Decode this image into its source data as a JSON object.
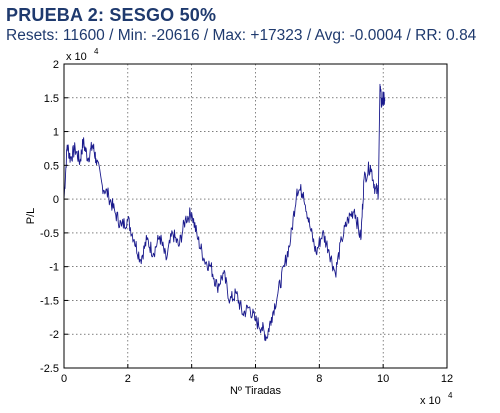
{
  "header": {
    "title": "PRUEBA 2: SESGO 50%",
    "subtitle": "Resets: 11600 / Min: -20616 / Max: +17323 / Avg: -0.0004 / RR: 0.84"
  },
  "chart_data": {
    "type": "line",
    "title": "",
    "xlabel": "Nº Tiradas",
    "ylabel": "P/L",
    "x_exponent_label": "x 10",
    "x_exponent": "4",
    "y_exponent_label": "x 10",
    "y_exponent": "4",
    "xlim": [
      0,
      12
    ],
    "ylim": [
      -2.5,
      2
    ],
    "x_ticks": [
      0,
      2,
      4,
      6,
      8,
      10,
      12
    ],
    "y_ticks": [
      -2.5,
      -2,
      -1.5,
      -1,
      -0.5,
      0,
      0.5,
      1,
      1.5,
      2
    ],
    "x_tick_labels": [
      "0",
      "2",
      "4",
      "6",
      "8",
      "10",
      "12"
    ],
    "y_tick_labels": [
      "-2.5",
      "-2",
      "-1.5",
      "-1",
      "-0.5",
      "0",
      "0.5",
      "1",
      "1.5",
      "2"
    ],
    "grid": true,
    "line_color": "#1a1a8c",
    "series": [
      {
        "x": [
          0,
          0.1,
          0.2,
          0.35,
          0.5,
          0.6,
          0.75,
          0.9,
          1.0,
          1.2,
          1.4,
          1.6,
          1.8,
          2.0,
          2.2,
          2.4,
          2.6,
          2.8,
          3.0,
          3.2,
          3.4,
          3.6,
          3.8,
          4.0,
          4.2,
          4.4,
          4.6,
          4.8,
          5.0,
          5.2,
          5.4,
          5.6,
          5.8,
          6.0,
          6.2,
          6.35,
          6.5,
          6.7,
          6.9,
          7.1,
          7.3,
          7.5,
          7.7,
          7.9,
          8.1,
          8.3,
          8.5,
          8.7,
          8.9,
          9.1,
          9.3,
          9.4,
          9.6,
          9.75,
          9.85,
          9.9,
          9.95,
          10.0,
          10.05
        ],
        "values": [
          0.0,
          0.8,
          0.6,
          0.75,
          0.55,
          0.85,
          0.6,
          0.8,
          0.6,
          0.2,
          0.05,
          -0.2,
          -0.4,
          -0.3,
          -0.6,
          -0.9,
          -0.6,
          -0.8,
          -0.55,
          -0.9,
          -0.5,
          -0.7,
          -0.3,
          -0.2,
          -0.6,
          -0.9,
          -1.0,
          -1.3,
          -1.1,
          -1.5,
          -1.4,
          -1.7,
          -1.6,
          -1.8,
          -1.9,
          -2.05,
          -1.75,
          -1.4,
          -1.0,
          -0.6,
          0.15,
          0.1,
          -0.4,
          -0.8,
          -0.5,
          -0.75,
          -1.1,
          -0.6,
          -0.3,
          -0.15,
          -0.6,
          0.3,
          0.5,
          0.15,
          0.1,
          1.7,
          1.4,
          1.5,
          1.45
        ]
      }
    ]
  }
}
